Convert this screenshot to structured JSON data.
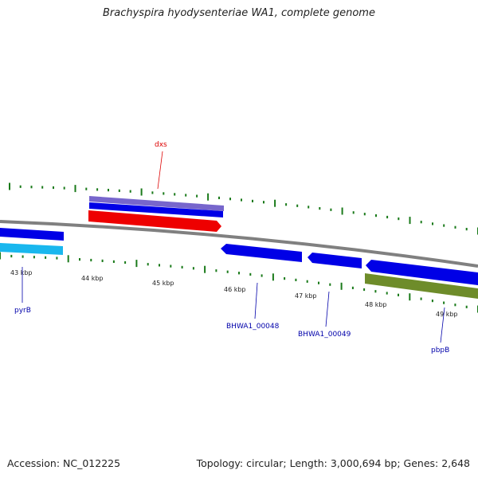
{
  "title": "Brachyspira hyodysenteriae WA1, complete genome",
  "footer": {
    "accession": "Accession: NC_012225",
    "summary": "Topology: circular; Length: 3,000,694 bp; Genes: 2,648"
  },
  "scale_labels": [
    "43 kbp",
    "44 kbp",
    "45 kbp",
    "46 kbp",
    "47 kbp",
    "48 kbp",
    "49 kbp"
  ],
  "gene_labels": {
    "pyrB": "pyrB",
    "dxs": "dxs",
    "bhwa48": "BHWA1_00048",
    "bhwa49": "BHWA1_00049",
    "pbpB": "pbpB"
  },
  "colors": {
    "backbone": "#808080",
    "cds_blue": "#0000e6",
    "cds_red": "#ee0000",
    "cds_cyan": "#19b7ee",
    "cds_purple": "#7766cc",
    "cds_olive": "#6e8c2a",
    "tick": "#1a7a1a",
    "label_blue": "#0000aa",
    "label_red": "#dd0000"
  }
}
